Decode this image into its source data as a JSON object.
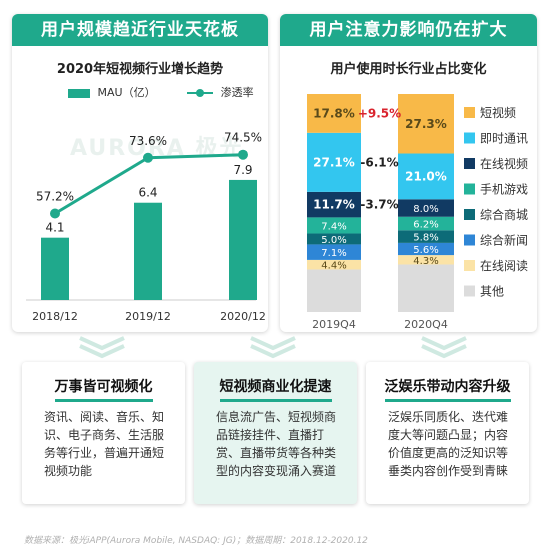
{
  "left_panel": {
    "header": "用户规模趋近行业天花板",
    "watermark": "AURORA 极光"
  },
  "right_panel": {
    "header": "用户注意力影响仍在扩大"
  },
  "chart_data": [
    {
      "type": "bar",
      "title": "2020年短视频行业增长趋势",
      "categories": [
        "2018/12",
        "2019/12",
        "2020/12"
      ],
      "series": [
        {
          "name": "MAU（亿）",
          "type": "bar",
          "values": [
            4.1,
            6.4,
            7.9
          ],
          "color": "#1fa98c"
        },
        {
          "name": "渗透率",
          "type": "line",
          "values": [
            57.2,
            73.6,
            74.5
          ],
          "unit": "%",
          "color": "#1fa98c"
        }
      ],
      "legend_position": "top",
      "grid": false
    },
    {
      "type": "bar",
      "stacked": true,
      "title": "用户使用时长行业占比变化",
      "categories": [
        "2019Q4",
        "2020Q4"
      ],
      "series": [
        {
          "name": "其他",
          "values": [
            null,
            null
          ],
          "color": "#dcdcdc"
        },
        {
          "name": "在线阅读",
          "values": [
            4.4,
            4.3
          ],
          "color": "#fbe3a6"
        },
        {
          "name": "综合新闻",
          "values": [
            7.1,
            5.6
          ],
          "color": "#2e86d6"
        },
        {
          "name": "综合商城",
          "values": [
            5.0,
            5.8
          ],
          "color": "#0d6b78"
        },
        {
          "name": "手机游戏",
          "values": [
            7.4,
            6.2
          ],
          "color": "#23b39a"
        },
        {
          "name": "在线视频",
          "values": [
            11.7,
            8.0
          ],
          "color": "#113a63"
        },
        {
          "name": "即时通讯",
          "values": [
            27.1,
            21.0
          ],
          "color": "#33c6ef"
        },
        {
          "name": "短视频",
          "values": [
            17.8,
            27.3
          ],
          "color": "#f8b948"
        }
      ],
      "changes": [
        {
          "series": "短视频",
          "label": "+9.5%",
          "color": "#d9232d"
        },
        {
          "series": "即时通讯",
          "label": "-6.1%",
          "color": "#222222"
        },
        {
          "series": "在线视频",
          "label": "-3.7%",
          "color": "#222222"
        }
      ],
      "legend_order": [
        "短视频",
        "即时通讯",
        "在线视频",
        "手机游戏",
        "综合商城",
        "综合新闻",
        "在线阅读",
        "其他"
      ],
      "legend_position": "right",
      "grid": false
    }
  ],
  "cards": [
    {
      "title": "万事皆可视频化",
      "body": "资讯、阅读、音乐、知识、电子商务、生活服务等行业，普遍开通短视频功能",
      "highlight": false
    },
    {
      "title": "短视频商业化提速",
      "body": "信息流广告、短视频商品链接挂件、直播打赏、直播带货等各种类型的内容变现涌入赛道",
      "highlight": true
    },
    {
      "title": "泛娱乐带动内容升级",
      "body": "泛娱乐同质化、迭代难度大等问题凸显；内容价值度更高的泛知识等垂类内容创作受到青睐",
      "highlight": false
    }
  ],
  "source": "数据来源：极光iAPP(Aurora Mobile, NASDAQ: JG)；数据周期：2018.12-2020.12"
}
